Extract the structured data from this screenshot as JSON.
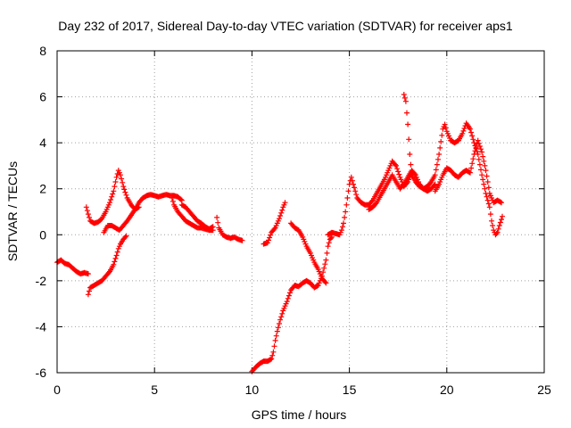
{
  "chart_data": {
    "type": "scatter",
    "title": "Day 232 of 2017, Sidereal Day-to-day VTEC variation (SDTVAR) for receiver aps1",
    "xlabel": "GPS time / hours",
    "ylabel": "SDTVAR / TECUs",
    "xlim": [
      0,
      25
    ],
    "ylim": [
      -6,
      8
    ],
    "x_ticks": [
      "0",
      "5",
      "10",
      "15",
      "20",
      "25"
    ],
    "y_ticks": [
      "-6",
      "-4",
      "-2",
      "0",
      "2",
      "4",
      "6",
      "8"
    ],
    "grid": true,
    "marker": "+",
    "color": "#ff0000",
    "segments": [
      [
        [
          0.0,
          -1.2
        ],
        [
          0.2,
          -1.1
        ],
        [
          0.4,
          -1.25
        ],
        [
          0.6,
          -1.3
        ],
        [
          0.8,
          -1.45
        ],
        [
          1.0,
          -1.6
        ],
        [
          1.2,
          -1.7
        ],
        [
          1.4,
          -1.65
        ],
        [
          1.6,
          -1.7
        ]
      ],
      [
        [
          1.5,
          1.2
        ],
        [
          1.6,
          0.9
        ],
        [
          1.7,
          0.6
        ],
        [
          1.9,
          0.5
        ],
        [
          2.1,
          0.55
        ],
        [
          2.3,
          0.7
        ],
        [
          2.5,
          1.0
        ],
        [
          2.7,
          1.4
        ],
        [
          2.9,
          1.9
        ],
        [
          3.05,
          2.5
        ],
        [
          3.15,
          2.8
        ],
        [
          3.25,
          2.6
        ],
        [
          3.4,
          2.1
        ],
        [
          3.6,
          1.6
        ],
        [
          3.8,
          1.3
        ],
        [
          4.0,
          1.1
        ],
        [
          4.2,
          1.2
        ]
      ],
      [
        [
          1.6,
          -2.6
        ],
        [
          1.7,
          -2.3
        ],
        [
          1.9,
          -2.2
        ],
        [
          2.1,
          -2.1
        ],
        [
          2.3,
          -2.0
        ],
        [
          2.5,
          -1.8
        ],
        [
          2.7,
          -1.6
        ],
        [
          2.9,
          -1.3
        ],
        [
          3.05,
          -0.9
        ],
        [
          3.15,
          -0.6
        ],
        [
          3.25,
          -0.4
        ],
        [
          3.4,
          -0.2
        ],
        [
          3.55,
          -0.05
        ]
      ],
      [
        [
          2.4,
          0.1
        ],
        [
          2.6,
          0.4
        ],
        [
          2.8,
          0.4
        ],
        [
          3.0,
          0.3
        ],
        [
          3.2,
          0.2
        ],
        [
          3.4,
          0.4
        ],
        [
          3.6,
          0.6
        ],
        [
          3.8,
          0.85
        ],
        [
          4.0,
          1.1
        ],
        [
          4.2,
          1.4
        ],
        [
          4.4,
          1.6
        ],
        [
          4.6,
          1.7
        ],
        [
          4.8,
          1.75
        ],
        [
          5.0,
          1.7
        ],
        [
          5.2,
          1.65
        ],
        [
          5.4,
          1.7
        ],
        [
          5.6,
          1.75
        ],
        [
          5.8,
          1.7
        ],
        [
          6.0,
          1.7
        ],
        [
          6.2,
          1.65
        ],
        [
          6.4,
          1.5
        ]
      ],
      [
        [
          5.9,
          1.6
        ],
        [
          6.0,
          1.3
        ],
        [
          6.2,
          1.0
        ],
        [
          6.4,
          0.8
        ],
        [
          6.6,
          0.6
        ],
        [
          6.8,
          0.5
        ],
        [
          7.0,
          0.4
        ],
        [
          7.2,
          0.3
        ],
        [
          7.4,
          0.3
        ],
        [
          7.6,
          0.25
        ],
        [
          7.8,
          0.2
        ],
        [
          8.0,
          0.2
        ]
      ],
      [
        [
          6.4,
          1.3
        ],
        [
          6.6,
          1.2
        ],
        [
          6.8,
          1.0
        ],
        [
          7.0,
          0.8
        ],
        [
          7.2,
          0.6
        ],
        [
          7.4,
          0.5
        ],
        [
          7.6,
          0.35
        ],
        [
          7.8,
          0.25
        ],
        [
          8.0,
          0.35
        ]
      ],
      [
        [
          8.2,
          0.75
        ],
        [
          8.3,
          0.3
        ],
        [
          8.5,
          0.0
        ],
        [
          8.7,
          -0.1
        ],
        [
          8.9,
          -0.15
        ],
        [
          9.1,
          -0.1
        ],
        [
          9.3,
          -0.2
        ],
        [
          9.5,
          -0.25
        ]
      ],
      [
        [
          10.0,
          -5.95
        ],
        [
          10.2,
          -5.75
        ],
        [
          10.4,
          -5.6
        ],
        [
          10.6,
          -5.5
        ],
        [
          10.8,
          -5.5
        ],
        [
          11.0,
          -5.4
        ],
        [
          11.1,
          -5.1
        ],
        [
          11.2,
          -4.6
        ],
        [
          11.3,
          -4.2
        ],
        [
          11.45,
          -3.7
        ],
        [
          11.6,
          -3.3
        ],
        [
          11.8,
          -2.9
        ],
        [
          12.0,
          -2.4
        ],
        [
          12.2,
          -2.2
        ],
        [
          12.4,
          -2.25
        ],
        [
          12.6,
          -2.1
        ],
        [
          12.8,
          -2.0
        ],
        [
          13.0,
          -2.1
        ],
        [
          13.2,
          -2.3
        ],
        [
          13.4,
          -2.2
        ],
        [
          13.6,
          -1.8
        ],
        [
          13.8,
          -1.1
        ],
        [
          13.9,
          -0.5
        ],
        [
          14.0,
          -0.2
        ],
        [
          14.1,
          -0.1
        ]
      ],
      [
        [
          10.6,
          -0.4
        ],
        [
          10.8,
          -0.35
        ],
        [
          11.0,
          0.1
        ],
        [
          11.2,
          0.3
        ],
        [
          11.4,
          0.7
        ],
        [
          11.6,
          1.2
        ],
        [
          11.7,
          1.4
        ]
      ],
      [
        [
          12.0,
          0.5
        ],
        [
          12.2,
          0.3
        ],
        [
          12.4,
          0.2
        ],
        [
          12.6,
          -0.1
        ],
        [
          12.8,
          -0.5
        ],
        [
          13.0,
          -0.8
        ],
        [
          13.2,
          -1.2
        ],
        [
          13.4,
          -1.5
        ],
        [
          13.6,
          -1.9
        ],
        [
          13.8,
          -2.1
        ]
      ],
      [
        [
          13.9,
          0.0
        ],
        [
          14.1,
          0.1
        ],
        [
          14.3,
          0.05
        ],
        [
          14.5,
          0.0
        ],
        [
          14.6,
          0.2
        ],
        [
          14.7,
          0.5
        ],
        [
          14.8,
          1.0
        ],
        [
          14.9,
          1.6
        ],
        [
          15.0,
          2.2
        ],
        [
          15.1,
          2.5
        ],
        [
          15.2,
          2.2
        ],
        [
          15.4,
          1.6
        ],
        [
          15.6,
          1.4
        ],
        [
          15.8,
          1.3
        ],
        [
          16.0,
          1.3
        ],
        [
          16.2,
          1.5
        ],
        [
          16.4,
          1.8
        ],
        [
          16.6,
          2.1
        ],
        [
          16.8,
          2.4
        ],
        [
          17.0,
          2.8
        ],
        [
          17.2,
          3.2
        ],
        [
          17.4,
          3.0
        ],
        [
          17.6,
          2.5
        ],
        [
          17.8,
          2.1
        ],
        [
          18.0,
          2.3
        ],
        [
          18.2,
          2.7
        ]
      ],
      [
        [
          16.0,
          1.1
        ],
        [
          16.2,
          1.2
        ],
        [
          16.4,
          1.4
        ],
        [
          16.6,
          1.7
        ],
        [
          16.8,
          2.0
        ],
        [
          17.0,
          2.3
        ],
        [
          17.2,
          2.6
        ],
        [
          17.4,
          2.3
        ],
        [
          17.6,
          2.0
        ],
        [
          17.8,
          2.2
        ],
        [
          18.0,
          2.5
        ],
        [
          18.2,
          2.8
        ],
        [
          18.4,
          2.6
        ],
        [
          18.6,
          2.2
        ],
        [
          18.8,
          2.0
        ],
        [
          19.0,
          1.9
        ],
        [
          19.2,
          2.0
        ],
        [
          19.4,
          2.2
        ]
      ],
      [
        [
          17.8,
          6.1
        ],
        [
          17.9,
          5.8
        ],
        [
          18.0,
          4.8
        ],
        [
          18.1,
          3.5
        ],
        [
          18.2,
          2.6
        ],
        [
          18.4,
          2.3
        ],
        [
          18.6,
          2.1
        ],
        [
          18.8,
          2.0
        ],
        [
          19.0,
          2.1
        ],
        [
          19.2,
          2.3
        ],
        [
          19.4,
          2.6
        ],
        [
          19.6,
          3.5
        ],
        [
          19.8,
          4.6
        ],
        [
          19.9,
          4.8
        ],
        [
          20.0,
          4.5
        ],
        [
          20.2,
          4.1
        ],
        [
          20.4,
          4.0
        ],
        [
          20.6,
          4.1
        ],
        [
          20.8,
          4.4
        ],
        [
          21.0,
          4.85
        ],
        [
          21.2,
          4.6
        ],
        [
          21.4,
          4.0
        ],
        [
          21.6,
          3.5
        ],
        [
          21.8,
          2.6
        ],
        [
          22.0,
          1.8
        ],
        [
          22.2,
          1.2
        ],
        [
          22.3,
          0.6
        ],
        [
          22.4,
          0.2
        ],
        [
          22.5,
          0.0
        ],
        [
          22.6,
          0.1
        ],
        [
          22.7,
          0.4
        ],
        [
          22.85,
          0.8
        ]
      ],
      [
        [
          19.4,
          1.9
        ],
        [
          19.6,
          2.2
        ],
        [
          19.8,
          2.6
        ],
        [
          20.0,
          2.9
        ],
        [
          20.2,
          2.8
        ],
        [
          20.4,
          2.6
        ],
        [
          20.6,
          2.5
        ],
        [
          20.8,
          2.7
        ],
        [
          21.0,
          2.8
        ],
        [
          21.2,
          2.7
        ],
        [
          21.4,
          3.5
        ],
        [
          21.6,
          4.1
        ],
        [
          21.8,
          3.6
        ],
        [
          22.0,
          2.8
        ],
        [
          22.2,
          1.8
        ],
        [
          22.4,
          1.4
        ],
        [
          22.6,
          1.5
        ],
        [
          22.8,
          1.4
        ]
      ]
    ]
  }
}
